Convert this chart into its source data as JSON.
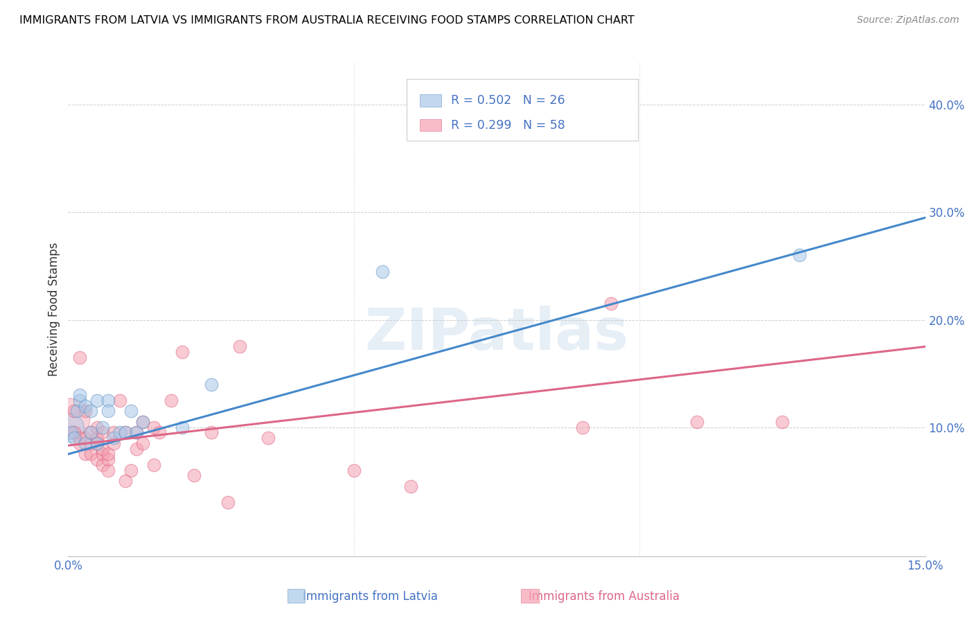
{
  "title": "IMMIGRANTS FROM LATVIA VS IMMIGRANTS FROM AUSTRALIA RECEIVING FOOD STAMPS CORRELATION CHART",
  "source": "Source: ZipAtlas.com",
  "ylabel": "Receiving Food Stamps",
  "xlim": [
    0.0,
    0.15
  ],
  "ylim": [
    -0.02,
    0.44
  ],
  "x_ticks": [
    0.0,
    0.05,
    0.1,
    0.15
  ],
  "x_tick_labels": [
    "0.0%",
    "",
    "",
    "15.0%"
  ],
  "y_ticks_right": [
    0.1,
    0.2,
    0.3,
    0.4
  ],
  "y_tick_labels_right": [
    "10.0%",
    "20.0%",
    "30.0%",
    "40.0%"
  ],
  "blue_color": "#a8c8e8",
  "pink_color": "#f4a0b0",
  "blue_edge_color": "#6090c0",
  "pink_edge_color": "#e06080",
  "blue_line_color": "#4488cc",
  "pink_line_color": "#dd6688",
  "watermark": "ZIPatlas",
  "blue_label": "Immigrants from Latvia",
  "pink_label": "Immigrants from Australia",
  "legend_text_color": "#4472c4",
  "legend_R1": "R = 0.502",
  "legend_N1": "N = 26",
  "legend_R2": "R = 0.299",
  "legend_N2": "N = 58",
  "latvia_x": [
    0.0005,
    0.001,
    0.0015,
    0.002,
    0.002,
    0.003,
    0.003,
    0.004,
    0.004,
    0.005,
    0.005,
    0.006,
    0.007,
    0.007,
    0.008,
    0.009,
    0.01,
    0.011,
    0.012,
    0.013,
    0.02,
    0.025,
    0.055,
    0.128
  ],
  "latvia_y": [
    0.095,
    0.09,
    0.115,
    0.125,
    0.13,
    0.12,
    0.085,
    0.095,
    0.115,
    0.125,
    0.085,
    0.1,
    0.125,
    0.115,
    0.09,
    0.095,
    0.095,
    0.115,
    0.095,
    0.105,
    0.1,
    0.14,
    0.245,
    0.26
  ],
  "latvia_sizes_small": 180,
  "latvia_big_x": [
    0.0002
  ],
  "latvia_big_y": [
    0.1
  ],
  "latvia_big_size": 900,
  "australia_x": [
    0.001,
    0.001,
    0.002,
    0.002,
    0.002,
    0.003,
    0.003,
    0.003,
    0.004,
    0.004,
    0.004,
    0.005,
    0.005,
    0.005,
    0.005,
    0.006,
    0.006,
    0.006,
    0.006,
    0.007,
    0.007,
    0.007,
    0.008,
    0.008,
    0.009,
    0.01,
    0.01,
    0.011,
    0.012,
    0.012,
    0.013,
    0.013,
    0.015,
    0.015,
    0.016,
    0.018,
    0.02,
    0.022,
    0.025,
    0.028,
    0.03,
    0.035,
    0.05,
    0.06,
    0.09,
    0.095,
    0.11,
    0.125
  ],
  "australia_y": [
    0.095,
    0.115,
    0.085,
    0.09,
    0.165,
    0.075,
    0.09,
    0.115,
    0.075,
    0.085,
    0.095,
    0.07,
    0.085,
    0.09,
    0.1,
    0.065,
    0.075,
    0.08,
    0.095,
    0.06,
    0.07,
    0.075,
    0.085,
    0.095,
    0.125,
    0.05,
    0.095,
    0.06,
    0.08,
    0.095,
    0.085,
    0.105,
    0.065,
    0.1,
    0.095,
    0.125,
    0.17,
    0.055,
    0.095,
    0.03,
    0.175,
    0.09,
    0.06,
    0.045,
    0.1,
    0.215,
    0.105,
    0.105
  ],
  "australia_big_x": [
    0.0002
  ],
  "australia_big_y": [
    0.108
  ],
  "australia_big_size": 1800,
  "blue_line_x0": 0.0,
  "blue_line_y0": 0.075,
  "blue_line_x1": 0.15,
  "blue_line_y1": 0.295,
  "pink_line_x0": 0.0,
  "pink_line_y0": 0.083,
  "pink_line_x1": 0.15,
  "pink_line_y1": 0.175
}
